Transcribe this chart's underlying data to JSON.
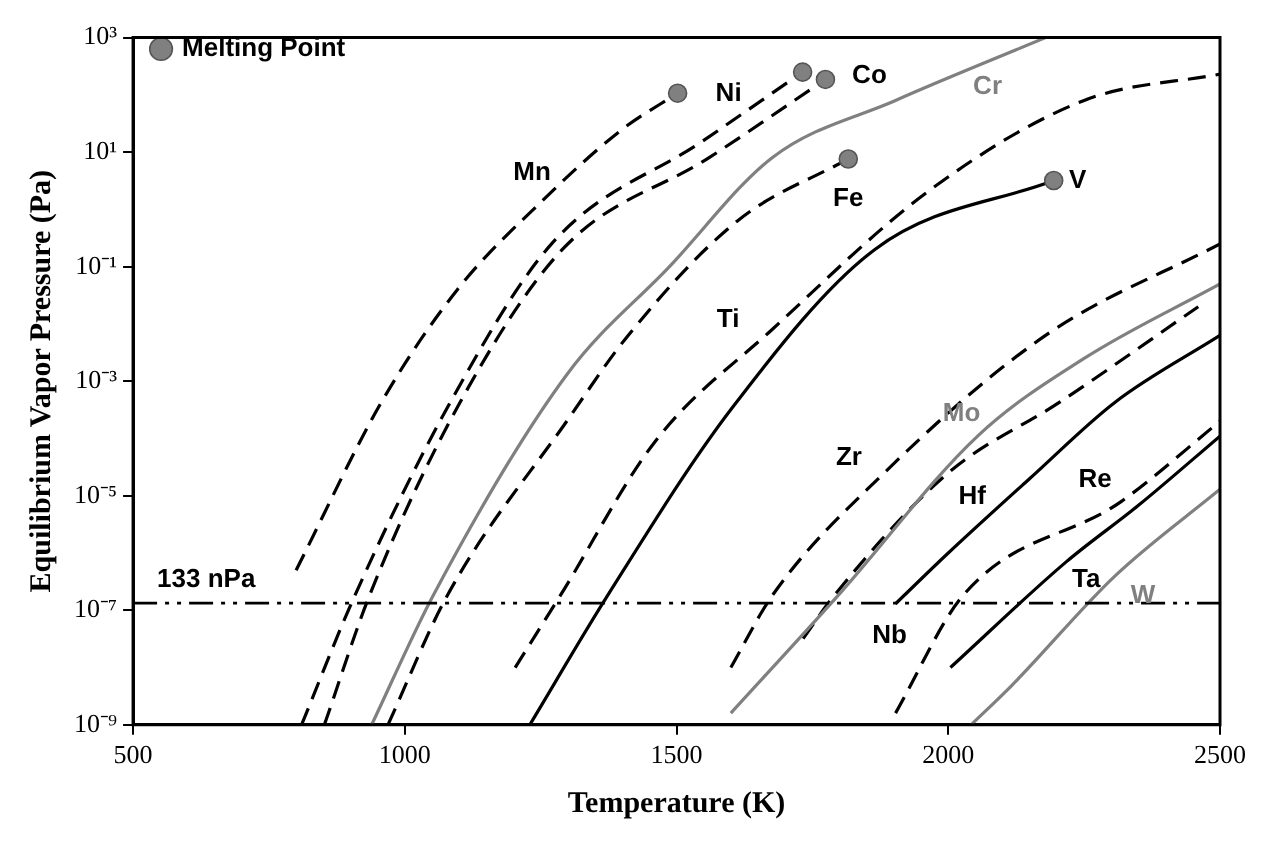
{
  "chart_data": {
    "type": "line",
    "xlabel": "Temperature (K)",
    "ylabel": "Equilibrium Vapor Pressure (Pa)",
    "log": "y",
    "grid": false,
    "legend": "top left",
    "xlim": [
      500,
      2500
    ],
    "xticks": [
      500,
      1000,
      1500,
      2000,
      2500
    ],
    "ylim": [
      1e-09,
      1000
    ],
    "yticks": [
      {
        "value": 1e-09,
        "label": "10⁻⁹"
      },
      {
        "value": 1e-07,
        "label": "10⁻⁷"
      },
      {
        "value": 1e-05,
        "label": "10⁻⁵"
      },
      {
        "value": 0.001,
        "label": "10⁻³"
      },
      {
        "value": 0.1,
        "label": "10⁻¹"
      },
      {
        "value": 10,
        "label": "10¹"
      },
      {
        "value": 1000,
        "label": "10³"
      }
    ],
    "series": [
      {
        "name": "Mn",
        "color": "#000000",
        "line_style": "dashed",
        "marker": "none",
        "x": [
          800,
          957,
          1097,
          1249,
          1400,
          1502
        ],
        "values": [
          5e-07,
          0.00043,
          0.04,
          1.3,
          25,
          107
        ]
      },
      {
        "name": "Ni",
        "color": "#000000",
        "line_style": "dashed",
        "marker": "none",
        "x": [
          810,
          908,
          1082,
          1270,
          1550,
          1732
        ],
        "values": [
          1e-09,
          1.8e-07,
          0.0004,
          0.25,
          16,
          250
        ]
      },
      {
        "name": "Co",
        "color": "#000000",
        "line_style": "dashed",
        "marker": "none",
        "x": [
          852,
          935,
          1100,
          1290,
          1560,
          1774
        ],
        "values": [
          1e-09,
          1.8e-07,
          0.0004,
          0.2,
          8,
          186
        ]
      },
      {
        "name": "Cr",
        "color": "#808080",
        "line_style": "solid",
        "marker": "none",
        "x": [
          939,
          1052,
          1298,
          1487,
          1676,
          1903,
          2179
        ],
        "values": [
          1e-09,
          1.8e-07,
          0.0013,
          0.1,
          8,
          80,
          1000
        ]
      },
      {
        "name": "Fe",
        "color": "#000000",
        "line_style": "dashed",
        "marker": "none",
        "x": [
          969,
          1078,
          1298,
          1411,
          1612,
          1816
        ],
        "values": [
          1e-09,
          1.8e-07,
          0.0002,
          0.0063,
          0.63,
          7.6
        ]
      },
      {
        "name": "Ti",
        "color": "#000000",
        "line_style": "dashed",
        "marker": "none",
        "x": [
          1203,
          1286,
          1460,
          1676,
          1967,
          2250,
          2500
        ],
        "values": [
          1e-08,
          1.8e-07,
          8.7e-05,
          0.008,
          2.2,
          80,
          230
        ]
      },
      {
        "name": "V",
        "color": "#000000",
        "line_style": "solid",
        "marker": "none",
        "x": [
          1230,
          1373,
          1600,
          1865,
          2194
        ],
        "values": [
          1e-09,
          1.8e-07,
          0.00032,
          0.2,
          3.2
        ]
      },
      {
        "name": "Zr",
        "color": "#000000",
        "line_style": "dashed",
        "marker": "none",
        "x": [
          1600,
          1676,
          1876,
          2179,
          2500
        ],
        "values": [
          1e-08,
          1.8e-07,
          2.2e-05,
          0.0063,
          0.25
        ]
      },
      {
        "name": "Mo",
        "color": "#808080",
        "line_style": "solid",
        "marker": "none",
        "x": [
          1600,
          1797,
          2054,
          2250,
          2500
        ],
        "values": [
          1.6e-09,
          1.8e-07,
          0.00011,
          0.0025,
          0.05
        ]
      },
      {
        "name": "Hf",
        "color": "#000000",
        "line_style": "dashed",
        "marker": "none",
        "x": [
          1733,
          1790,
          2000,
          2205,
          2460
        ],
        "values": [
          3.2e-08,
          1.8e-07,
          2.5e-05,
          0.00043,
          0.02
        ]
      },
      {
        "name": "Nb",
        "color": "#000000",
        "line_style": "solid",
        "marker": "none",
        "x": [
          1903,
          2000,
          2150,
          2307,
          2500
        ],
        "values": [
          1.3e-07,
          1e-06,
          2e-05,
          0.00043,
          0.0063
        ]
      },
      {
        "name": "Ta",
        "color": "#000000",
        "line_style": "solid",
        "marker": "none",
        "x": [
          2004,
          2217,
          2350,
          2500
        ],
        "values": [
          1e-08,
          7e-07,
          6.8e-06,
          0.00011
        ]
      },
      {
        "name": "Re",
        "color": "#000000",
        "line_style": "dashed",
        "marker": "none",
        "x": [
          1903,
          2027,
          2318,
          2500
        ],
        "values": [
          1.6e-09,
          1.8e-07,
          7.9e-06,
          0.0002
        ]
      },
      {
        "name": "W",
        "color": "#808080",
        "line_style": "solid",
        "marker": "none",
        "x": [
          2042,
          2118,
          2307,
          2500
        ],
        "values": [
          1e-09,
          5e-09,
          4e-07,
          1.3e-05
        ]
      },
      {
        "type": "scatter",
        "name": "Melting Point",
        "color": "#808080",
        "marker": "circle",
        "x": [
          1502,
          1732,
          1774,
          1816,
          2194
        ],
        "values": [
          107,
          250,
          186,
          7.6,
          3.2
        ]
      }
    ],
    "ref_lines": [
      {
        "axis": "y",
        "value": 1.33e-07,
        "label": "133 nPa",
        "color": "#000000",
        "line_style": "dashed"
      }
    ]
  }
}
